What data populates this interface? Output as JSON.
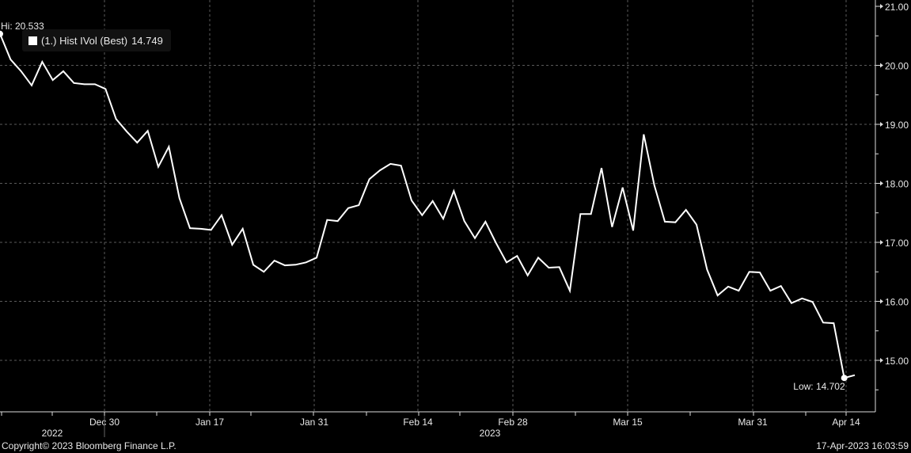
{
  "chart_data": {
    "type": "line",
    "title": "",
    "xlabel": "",
    "ylabel": "",
    "ylim": [
      14.5,
      21.1
    ],
    "y_ticks": [
      "21.00",
      "20.00",
      "19.00",
      "18.00",
      "17.00",
      "16.00",
      "15.00"
    ],
    "x_tick_labels": [
      "Dec 30",
      "Jan 17",
      "Jan 31",
      "Feb 14",
      "Feb 28",
      "Mar 15",
      "Mar 31",
      "Apr 14"
    ],
    "year_labels": [
      "2022",
      "2023"
    ],
    "grid": true,
    "legend_placement": "top-left",
    "line_color": "#ffffff",
    "series": [
      {
        "name": "(1.) Hist IVol (Best)",
        "last_value": "14.749",
        "values": [
          20.533,
          20.1,
          19.9,
          19.66,
          20.06,
          19.75,
          19.9,
          19.7,
          19.68,
          19.68,
          19.6,
          19.09,
          18.88,
          18.69,
          18.89,
          18.28,
          18.62,
          17.75,
          17.24,
          17.23,
          17.21,
          17.46,
          16.96,
          17.23,
          16.62,
          16.5,
          16.69,
          16.61,
          16.62,
          16.66,
          16.74,
          17.38,
          17.36,
          17.58,
          17.63,
          18.07,
          18.22,
          18.33,
          18.3,
          17.71,
          17.46,
          17.7,
          17.4,
          17.87,
          17.36,
          17.07,
          17.35,
          16.99,
          16.66,
          16.77,
          16.44,
          16.74,
          16.57,
          16.58,
          16.18,
          17.48,
          17.48,
          18.26,
          17.26,
          17.93,
          17.2,
          18.83,
          17.97,
          17.35,
          17.34,
          17.55,
          17.3,
          16.54,
          16.1,
          16.25,
          16.18,
          16.5,
          16.49,
          16.18,
          16.26,
          15.97,
          16.05,
          15.99,
          15.64,
          15.63,
          14.702,
          14.749
        ]
      }
    ],
    "annotations": {
      "high_label": "Hi: 20.533",
      "low_label": "Low: 14.702"
    }
  },
  "footer": {
    "copyright": "Copyright© 2023 Bloomberg Finance L.P.",
    "timestamp": "17-Apr-2023 16:03:59"
  }
}
